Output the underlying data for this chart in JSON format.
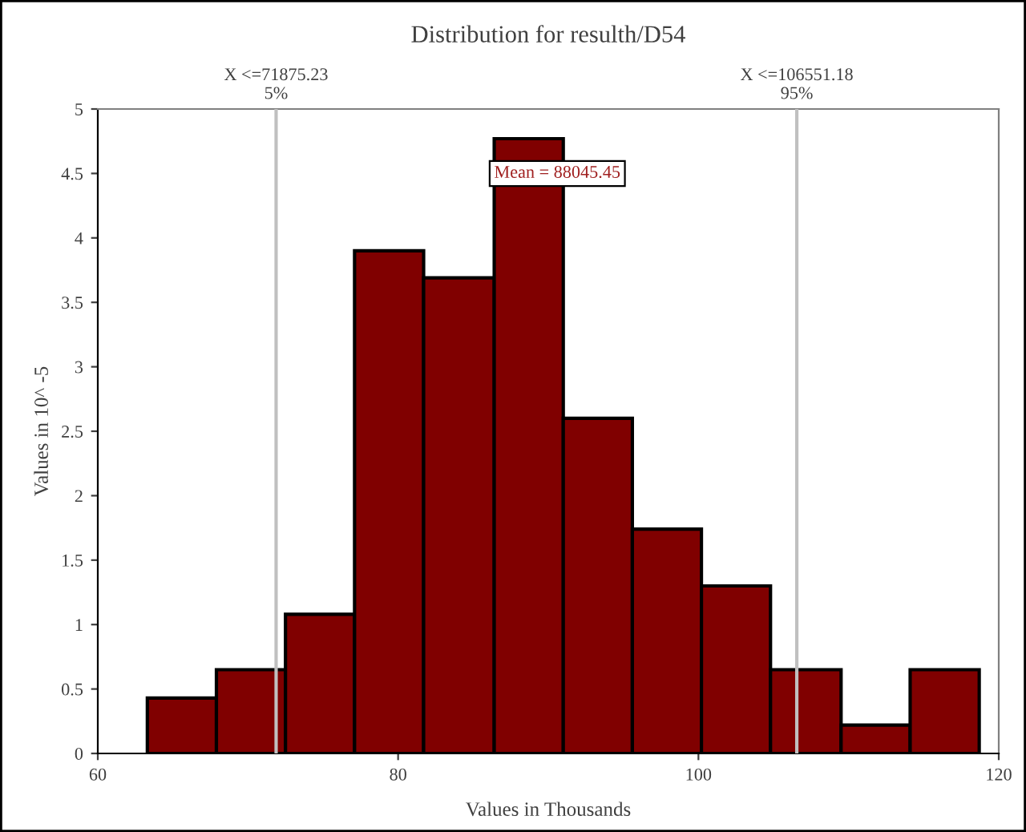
{
  "chart_data": {
    "type": "histogram",
    "title": "Distribution for resulth/D54",
    "xlabel": "Values in Thousands",
    "ylabel": "Values in 10^ -5",
    "bins": [
      63.3,
      67.9,
      72.5,
      77.1,
      81.7,
      86.4,
      91.0,
      95.6,
      100.2,
      104.8,
      109.5,
      114.1,
      118.7
    ],
    "values": [
      0.43,
      0.65,
      1.08,
      3.9,
      3.69,
      4.77,
      2.6,
      1.74,
      1.3,
      0.65,
      0.22,
      0.65
    ],
    "color": "#800000",
    "xlim": [
      60,
      120
    ],
    "xticks": [
      60,
      80,
      100,
      120
    ],
    "ylim": [
      0,
      5
    ],
    "yticks": [
      0,
      0.5,
      1,
      1.5,
      2,
      2.5,
      3,
      3.5,
      4,
      4.5,
      5
    ],
    "ref_lines": [
      {
        "axis": "x",
        "value": 71.87523,
        "label": "X <=71875.23\n5%",
        "color": "#c0c0c0"
      },
      {
        "axis": "x",
        "value": 106.55118,
        "label": "X <=106551.18\n95%",
        "color": "#c0c0c0"
      }
    ],
    "annotations": [
      "Mean = 88045.45"
    ],
    "grid": false,
    "legend": false
  }
}
